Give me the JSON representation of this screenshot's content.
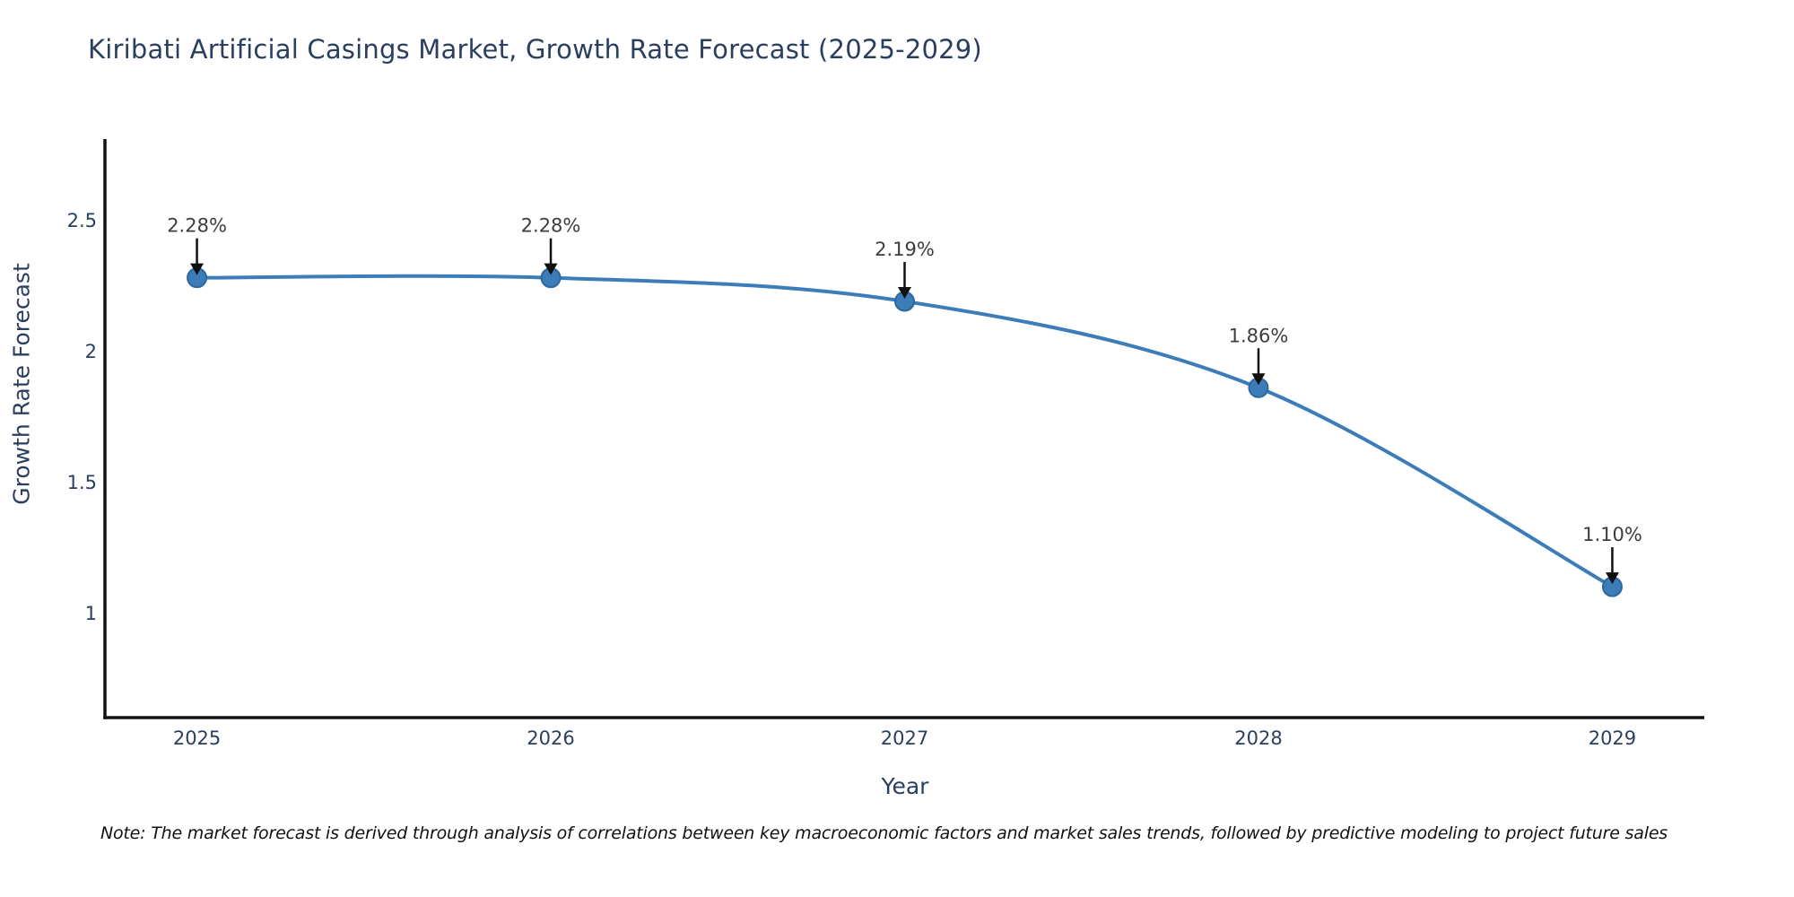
{
  "title": "Kiribati Artificial Casings Market, Growth Rate Forecast (2025-2029)",
  "note": "Note: The market forecast is derived through analysis of correlations between key macroeconomic factors and market sales trends, followed by predictive modeling to project future sales",
  "chart_data": {
    "type": "line",
    "title": "Kiribati Artificial Casings Market, Growth Rate Forecast (2025-2029)",
    "xlabel": "Year",
    "ylabel": "Growth Rate Forecast",
    "x": [
      2025,
      2026,
      2027,
      2028,
      2029
    ],
    "series": [
      {
        "name": "Growth Rate Forecast",
        "values": [
          2.28,
          2.28,
          2.19,
          1.86,
          1.1
        ],
        "point_labels": [
          "2.28%",
          "2.28%",
          "2.19%",
          "1.86%",
          "1.10%"
        ]
      }
    ],
    "line_shape": "spline",
    "markers": true,
    "annotations_arrows": true,
    "xticks": [
      2025,
      2026,
      2027,
      2028,
      2029
    ],
    "yticks": [
      2.5,
      2,
      1.5,
      1
    ],
    "xlim": [
      2024.74,
      2029.26
    ],
    "ylim": [
      0.6,
      2.81
    ],
    "grid": false,
    "legend": false,
    "colors": {
      "line": "#3b7cb9",
      "marker_fill": "#3b7cb9",
      "marker_edge": "#2d689c",
      "arrow": "#101010",
      "axis_line": "#111111",
      "title_text": "#2a3f5f",
      "tick_text": "#2a3f5f",
      "annotation_text": "#3d3d3d"
    }
  }
}
